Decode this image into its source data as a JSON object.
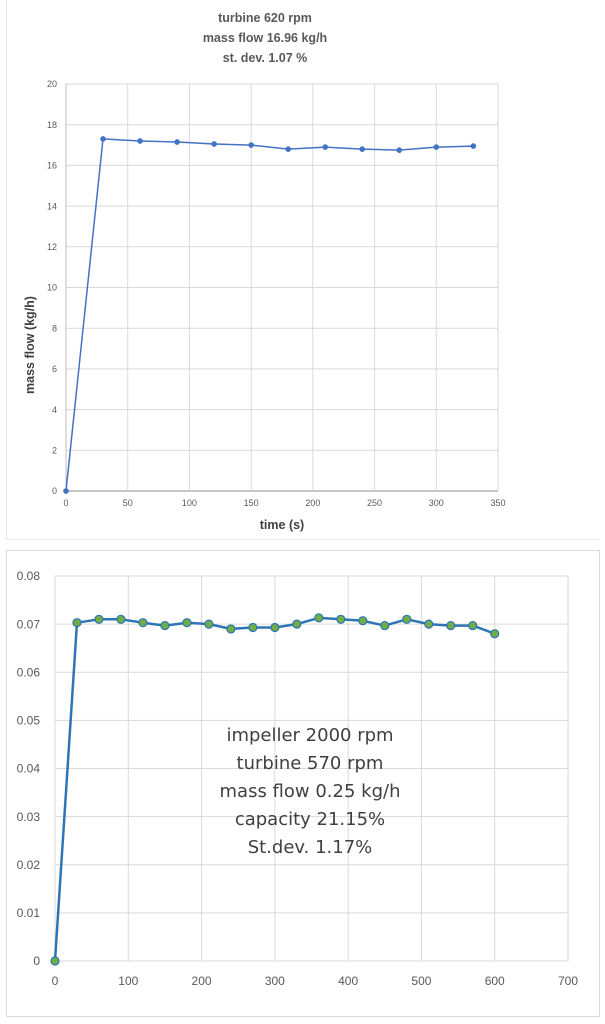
{
  "chart_data": [
    {
      "type": "line",
      "title_lines": [
        "turbine 620 rpm",
        "mass flow 16.96 kg/h",
        "st. dev. 1.07 %"
      ],
      "xlabel": "time (s)",
      "ylabel": "mass flow (kg/h)",
      "x": [
        0,
        30,
        60,
        90,
        120,
        150,
        180,
        210,
        240,
        270,
        300,
        330
      ],
      "y": [
        0,
        17.3,
        17.2,
        17.15,
        17.05,
        17.0,
        16.8,
        16.9,
        16.8,
        16.75,
        16.9,
        16.95
      ],
      "xlim": [
        0,
        350
      ],
      "ylim": [
        0,
        20
      ],
      "xticks": [
        0,
        50,
        100,
        150,
        200,
        250,
        300,
        350
      ],
      "yticks": [
        0,
        2,
        4,
        6,
        8,
        10,
        12,
        14,
        16,
        18,
        20
      ],
      "grid": true,
      "line_color": "#4472c4",
      "marker_color": "#4472c4"
    },
    {
      "type": "line",
      "annotation_lines": [
        "impeller 2000 rpm",
        "turbine 570 rpm",
        "mass flow 0.25 kg/h",
        "capacity 21.15%",
        "St.dev. 1.17%"
      ],
      "x": [
        0,
        30,
        60,
        90,
        120,
        150,
        180,
        210,
        240,
        270,
        300,
        330,
        360,
        390,
        420,
        450,
        480,
        510,
        540,
        570,
        600
      ],
      "y": [
        0,
        0.0703,
        0.071,
        0.071,
        0.0703,
        0.0697,
        0.0703,
        0.07,
        0.069,
        0.0693,
        0.0693,
        0.07,
        0.0713,
        0.071,
        0.0707,
        0.0697,
        0.071,
        0.07,
        0.0697,
        0.0697,
        0.068
      ],
      "xlim": [
        0,
        700
      ],
      "ylim": [
        0,
        0.08
      ],
      "xticks": [
        0,
        100,
        200,
        300,
        400,
        500,
        600,
        700
      ],
      "yticks": [
        0,
        0.01,
        0.02,
        0.03,
        0.04,
        0.05,
        0.06,
        0.07,
        0.08
      ],
      "ytick_labels": [
        "0",
        "0.01",
        "0.02",
        "0.03",
        "0.04",
        "0.05",
        "0.06",
        "0.07",
        "0.08"
      ],
      "grid": true,
      "line_color": "#2e75b6",
      "marker_color": "#70ad47"
    }
  ]
}
